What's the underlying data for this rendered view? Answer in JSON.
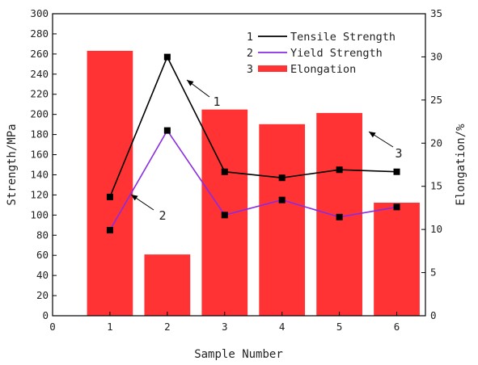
{
  "chart_data": {
    "type": "bar",
    "categories": [
      "1",
      "2",
      "3",
      "4",
      "5",
      "6"
    ],
    "x": [
      1,
      2,
      3,
      4,
      5,
      6
    ],
    "xlabel": "Sample Number",
    "xlim": [
      0,
      6.5
    ],
    "xticks": [
      "0",
      "1",
      "2",
      "3",
      "4",
      "5",
      "6"
    ],
    "ylabel": "Strength/MPa",
    "ylim": [
      0,
      300
    ],
    "yticks": [
      "0",
      "20",
      "40",
      "60",
      "80",
      "100",
      "120",
      "140",
      "160",
      "180",
      "200",
      "220",
      "240",
      "260",
      "280",
      "300"
    ],
    "y2label": "Elongation/%",
    "y2lim": [
      0,
      35
    ],
    "y2ticks": [
      "0",
      "5",
      "10",
      "15",
      "20",
      "25",
      "30",
      "35"
    ],
    "grid": false,
    "legend_position": "top-right",
    "series": [
      {
        "name": "Tensile Strength",
        "legend_key": "1",
        "type": "line",
        "axis": "left",
        "color": "#000000",
        "marker": "square",
        "values": [
          118,
          257,
          143,
          137,
          145,
          143
        ]
      },
      {
        "name": "Yield Strength",
        "legend_key": "2",
        "type": "line",
        "axis": "left",
        "color": "#8a2be2",
        "marker": "square",
        "values": [
          85,
          184,
          100,
          115,
          98,
          108
        ]
      },
      {
        "name": "Elongation",
        "legend_key": "3",
        "type": "bar",
        "axis": "right",
        "color": "#ff3333",
        "values": [
          30.7,
          7.1,
          23.9,
          22.2,
          23.5,
          13.1
        ]
      }
    ],
    "annotations": [
      {
        "text": "1",
        "series": "Tensile Strength"
      },
      {
        "text": "2",
        "series": "Yield Strength"
      },
      {
        "text": "3",
        "series": "Elongation"
      }
    ]
  }
}
